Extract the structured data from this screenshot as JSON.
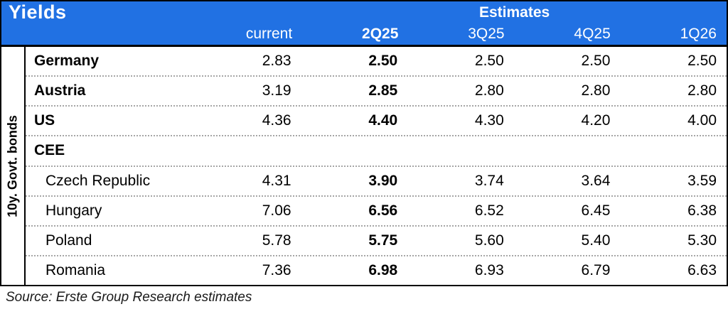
{
  "colors": {
    "header_blue": "#2171E3",
    "header_text": "#FFFFFF",
    "row_separator": "#A6A6A6",
    "border": "#000000"
  },
  "chart_data": {
    "type": "table",
    "title": "Yields",
    "group_header": "Estimates",
    "row_group_label": "10y. Govt. bonds",
    "columns": [
      "current",
      "2Q25",
      "3Q25",
      "4Q25",
      "1Q26"
    ],
    "rows": [
      {
        "label": "Germany",
        "values": [
          "2.83",
          "2.50",
          "2.50",
          "2.50",
          "2.50"
        ]
      },
      {
        "label": "Austria",
        "values": [
          "3.19",
          "2.85",
          "2.80",
          "2.80",
          "2.80"
        ]
      },
      {
        "label": "US",
        "values": [
          "4.36",
          "4.40",
          "4.30",
          "4.20",
          "4.00"
        ]
      },
      {
        "label": "CEE",
        "values": [
          "",
          "",
          "",
          "",
          ""
        ]
      },
      {
        "label": "Czech Republic",
        "values": [
          "4.31",
          "3.90",
          "3.74",
          "3.64",
          "3.59"
        ]
      },
      {
        "label": "Hungary",
        "values": [
          "7.06",
          "6.56",
          "6.52",
          "6.45",
          "6.38"
        ]
      },
      {
        "label": "Poland",
        "values": [
          "5.78",
          "5.75",
          "5.60",
          "5.40",
          "5.30"
        ]
      },
      {
        "label": "Romania",
        "values": [
          "7.36",
          "6.98",
          "6.93",
          "6.79",
          "6.63"
        ]
      }
    ]
  },
  "footer": {
    "source": "Source: Erste Group Research estimates"
  }
}
